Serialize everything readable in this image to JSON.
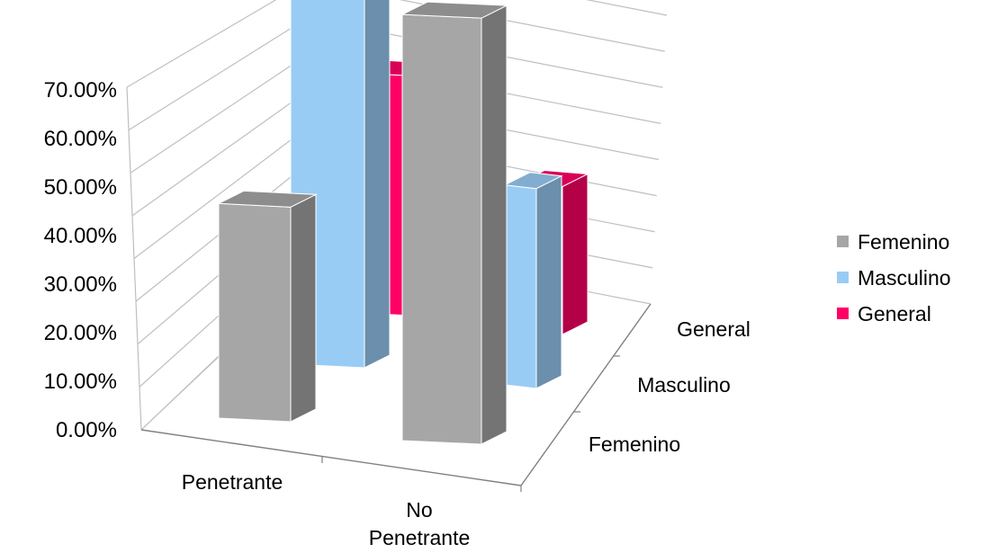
{
  "chart_data": {
    "type": "bar",
    "view": "3d-column",
    "categories": [
      "Penetrante",
      "No Penetrante"
    ],
    "category_lines": [
      [
        "Penetrante"
      ],
      [
        "No",
        "Penetrante"
      ]
    ],
    "depth_labels": [
      "Femenino",
      "Masculino",
      "General"
    ],
    "series": [
      {
        "name": "Femenino",
        "values": [
          34.0,
          67.5
        ],
        "color": "#a6a6a6"
      },
      {
        "name": "Masculino",
        "values": [
          62.0,
          35.0
        ],
        "color": "#99ccf5"
      },
      {
        "name": "General",
        "values": [
          57.0,
          37.0
        ],
        "color": "#ff0066"
      }
    ],
    "yticks": [
      "0.00%",
      "10.00%",
      "20.00%",
      "30.00%",
      "40.00%",
      "50.00%",
      "60.00%",
      "70.00%"
    ],
    "ylim": [
      0,
      70
    ],
    "grid": true,
    "legend_position": "right",
    "legend": [
      "Femenino",
      "Masculino",
      "General"
    ]
  }
}
